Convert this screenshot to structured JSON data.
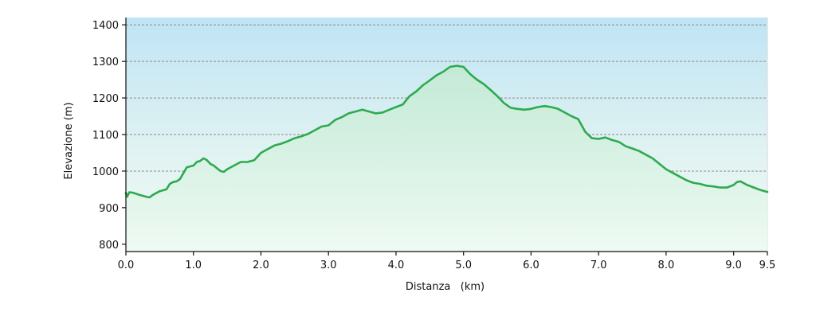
{
  "chart_data": {
    "type": "area",
    "xlabel": "Distanza   (km)",
    "ylabel": "Elevazione (m)",
    "xlim": [
      0,
      9.5
    ],
    "ylim": [
      780,
      1420
    ],
    "x_ticks": [
      0.0,
      1.0,
      2.0,
      3.0,
      4.0,
      5.0,
      6.0,
      7.0,
      8.0,
      9.0,
      9.5
    ],
    "x_tick_labels": [
      "0.0",
      "1.0",
      "2.0",
      "3.0",
      "4.0",
      "5.0",
      "6.0",
      "7.0",
      "8.0",
      "9.0",
      "9.5"
    ],
    "y_ticks": [
      800,
      900,
      1000,
      1100,
      1200,
      1300,
      1400
    ],
    "y_tick_labels": [
      "800",
      "900",
      "1000",
      "1100",
      "1200",
      "1300",
      "1400"
    ],
    "grid": {
      "horizontal": true,
      "style": "dashed"
    },
    "colors": {
      "line": "#2eaa4f",
      "fill_top": "#c3ead6",
      "fill_bottom": "#eefaf3",
      "bg_top": "#bfe4f4",
      "bg_bottom": "#f1fbf4",
      "grid": "#8a8a8a"
    },
    "series": [
      {
        "x": [
          0.0,
          0.02,
          0.05,
          0.1,
          0.2,
          0.3,
          0.35,
          0.4,
          0.5,
          0.6,
          0.65,
          0.7,
          0.75,
          0.8,
          0.9,
          1.0,
          1.05,
          1.1,
          1.15,
          1.2,
          1.25,
          1.3,
          1.4,
          1.45,
          1.5,
          1.6,
          1.7,
          1.8,
          1.9,
          2.0,
          2.1,
          2.2,
          2.3,
          2.4,
          2.5,
          2.6,
          2.7,
          2.8,
          2.9,
          3.0,
          3.1,
          3.2,
          3.3,
          3.4,
          3.5,
          3.6,
          3.7,
          3.8,
          3.9,
          4.0,
          4.1,
          4.2,
          4.3,
          4.4,
          4.5,
          4.6,
          4.7,
          4.8,
          4.9,
          5.0,
          5.1,
          5.2,
          5.3,
          5.4,
          5.5,
          5.6,
          5.7,
          5.8,
          5.9,
          6.0,
          6.1,
          6.2,
          6.3,
          6.4,
          6.5,
          6.6,
          6.7,
          6.8,
          6.9,
          7.0,
          7.1,
          7.2,
          7.3,
          7.4,
          7.5,
          7.6,
          7.7,
          7.8,
          7.9,
          8.0,
          8.1,
          8.2,
          8.3,
          8.4,
          8.5,
          8.6,
          8.7,
          8.8,
          8.9,
          9.0,
          9.05,
          9.1,
          9.2,
          9.3,
          9.4,
          9.5
        ],
        "y": [
          940,
          930,
          942,
          941,
          935,
          930,
          928,
          935,
          945,
          950,
          965,
          970,
          972,
          978,
          1010,
          1015,
          1025,
          1028,
          1035,
          1030,
          1020,
          1015,
          1000,
          998,
          1005,
          1015,
          1025,
          1025,
          1030,
          1050,
          1060,
          1070,
          1075,
          1082,
          1090,
          1095,
          1102,
          1112,
          1122,
          1125,
          1140,
          1148,
          1158,
          1163,
          1168,
          1163,
          1158,
          1160,
          1168,
          1175,
          1182,
          1205,
          1218,
          1235,
          1248,
          1262,
          1272,
          1285,
          1288,
          1285,
          1265,
          1250,
          1238,
          1222,
          1205,
          1186,
          1173,
          1170,
          1168,
          1170,
          1175,
          1178,
          1175,
          1170,
          1160,
          1150,
          1142,
          1108,
          1090,
          1088,
          1092,
          1085,
          1080,
          1068,
          1062,
          1055,
          1045,
          1035,
          1020,
          1005,
          995,
          985,
          975,
          968,
          965,
          960,
          958,
          955,
          955,
          962,
          970,
          972,
          962,
          955,
          948,
          943
        ]
      }
    ]
  }
}
